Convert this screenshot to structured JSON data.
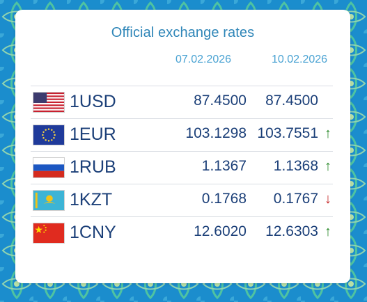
{
  "title": "Official exchange rates",
  "dates": [
    "07.02.2026",
    "10.02.2026"
  ],
  "colors": {
    "accent": "#2f86b8",
    "text": "#1b3f78",
    "up": "#2a8a2a",
    "down": "#c62828"
  },
  "rates": [
    {
      "flag": "flag-usa-icon",
      "code": "1USD",
      "rate1": "87.4500",
      "rate2": "87.4500",
      "trend": ""
    },
    {
      "flag": "flag-eu-icon",
      "code": "1EUR",
      "rate1": "103.1298",
      "rate2": "103.7551",
      "trend": "↑"
    },
    {
      "flag": "flag-russia-icon",
      "code": "1RUB",
      "rate1": "1.1367",
      "rate2": "1.1368",
      "trend": "↑"
    },
    {
      "flag": "flag-kazakhstan-icon",
      "code": "1KZT",
      "rate1": "0.1768",
      "rate2": "0.1767",
      "trend": "↓"
    },
    {
      "flag": "flag-china-icon",
      "code": "1CNY",
      "rate1": "12.6020",
      "rate2": "12.6303",
      "trend": "↑"
    }
  ]
}
